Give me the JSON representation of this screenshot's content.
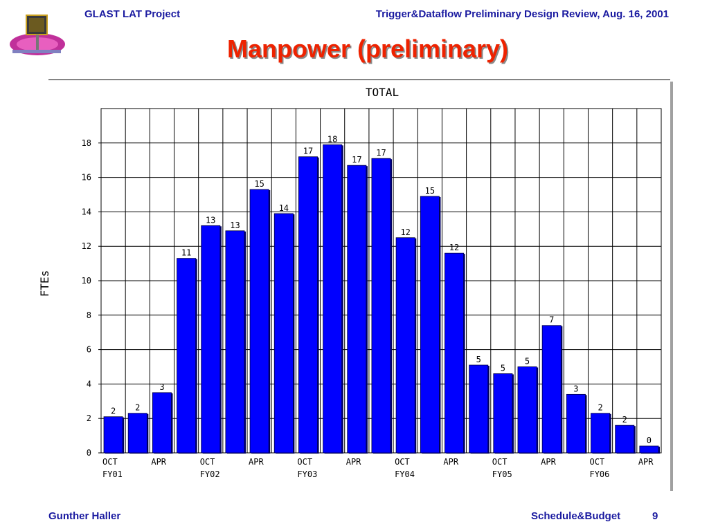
{
  "header": {
    "project": "GLAST LAT Project",
    "event": "Trigger&Dataflow Preliminary Design Review, Aug. 16, 2001"
  },
  "slide": {
    "title": "Manpower (preliminary)"
  },
  "footer": {
    "author": "Gunther Haller",
    "section": "Schedule&Budget",
    "page": "9"
  },
  "logo": {
    "icon": "glast-satellite-logo"
  },
  "chart_data": {
    "type": "bar",
    "title": "TOTAL",
    "xlabel": "",
    "ylabel": "FTEs",
    "ylim": [
      0,
      20
    ],
    "yticks": [
      0,
      2,
      4,
      6,
      8,
      10,
      12,
      14,
      16,
      18
    ],
    "grid": true,
    "bar_color": "#0000ff",
    "values": [
      2.1,
      2.3,
      3.5,
      11.3,
      13.2,
      12.9,
      15.3,
      13.9,
      17.2,
      17.9,
      16.7,
      17.1,
      12.5,
      14.9,
      11.6,
      5.1,
      4.6,
      5.0,
      7.4,
      3.4,
      2.3,
      1.6,
      0.4
    ],
    "data_labels": [
      "2",
      "2",
      "3",
      "11",
      "13",
      "13",
      "15",
      "14",
      "17",
      "18",
      "17",
      "17",
      "12",
      "15",
      "12",
      "5",
      "5",
      "5",
      "7",
      "3",
      "2",
      "2",
      "0"
    ],
    "x_tick_labels": [
      {
        "index": 0,
        "line1": "OCT",
        "line2": "FY01"
      },
      {
        "index": 2,
        "line1": "APR",
        "line2": ""
      },
      {
        "index": 4,
        "line1": "OCT",
        "line2": "FY02"
      },
      {
        "index": 6,
        "line1": "APR",
        "line2": ""
      },
      {
        "index": 8,
        "line1": "OCT",
        "line2": "FY03"
      },
      {
        "index": 10,
        "line1": "APR",
        "line2": ""
      },
      {
        "index": 12,
        "line1": "OCT",
        "line2": "FY04"
      },
      {
        "index": 14,
        "line1": "APR",
        "line2": ""
      },
      {
        "index": 16,
        "line1": "OCT",
        "line2": "FY05"
      },
      {
        "index": 18,
        "line1": "APR",
        "line2": ""
      },
      {
        "index": 20,
        "line1": "OCT",
        "line2": "FY06"
      },
      {
        "index": 22,
        "line1": "APR",
        "line2": ""
      }
    ]
  }
}
